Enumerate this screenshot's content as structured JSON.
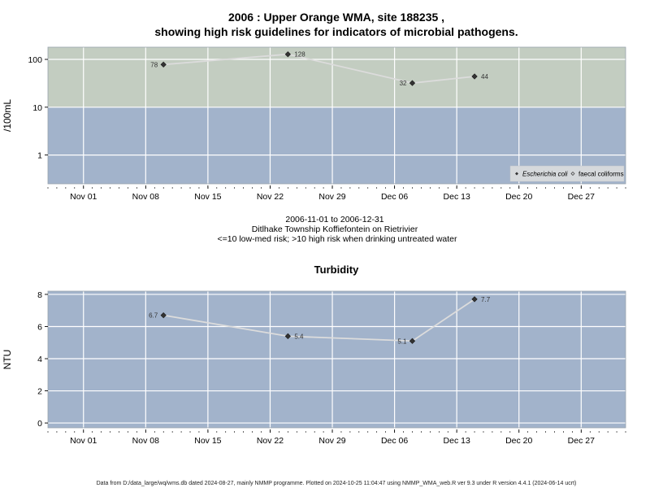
{
  "title_line1": "2006 : Upper Orange WMA, site 188235 ,",
  "title_line2": "showing high risk guidelines for indicators of microbial pathogens.",
  "subtitle_lines": [
    "2006-11-01 to 2006-12-31",
    "Ditlhake Township Koffiefontein on Rietrivier",
    "<=10 low-med risk; >10 high risk when drinking untreated water"
  ],
  "footer": "Data from D:/data_large/wq/wms.db dated 2024-08-27, mainly NMMP programme. Plotted on 2024-10-25 11:04:47 using NMMP_WMA_web.R ver 9.3 under R version 4.4.1 (2024-06-14 ucrt)",
  "colors": {
    "high_risk_band": "#c3cdc1",
    "low_risk_band": "#a2b3cb",
    "line": "#dcdcdc",
    "grid": "#ffffff",
    "point": "#333333"
  },
  "chart_data": [
    {
      "type": "line",
      "title": "",
      "ylabel": "/100mL",
      "yscale": "log",
      "ylim": [
        0.25,
        180
      ],
      "yticks": [
        1,
        10,
        100
      ],
      "ytick_labels": [
        "1",
        "10",
        "100"
      ],
      "threshold": 10,
      "xlim": [
        "2006-10-28",
        "2007-01-01"
      ],
      "xticks": [
        "2006-11-01",
        "2006-11-08",
        "2006-11-15",
        "2006-11-22",
        "2006-11-29",
        "2006-12-06",
        "2006-12-13",
        "2006-12-20",
        "2006-12-27"
      ],
      "xtick_labels": [
        "Nov 01",
        "Nov 08",
        "Nov 15",
        "Nov 22",
        "Nov 29",
        "Dec 06",
        "Dec 13",
        "Dec 20",
        "Dec 27"
      ],
      "grid": true,
      "legend_position": "bottom-right",
      "legend": [
        "Escherichia coli",
        "faecal coliforms"
      ],
      "series": [
        {
          "name": "Escherichia coli",
          "marker": "diamond",
          "x": [
            "2006-11-10",
            "2006-11-24",
            "2006-12-08",
            "2006-12-15"
          ],
          "values": [
            78,
            128,
            32,
            44
          ],
          "labels": [
            "78",
            "128",
            "32",
            "44"
          ]
        }
      ]
    },
    {
      "type": "line",
      "title": "Turbidity",
      "ylabel": "NTU",
      "yscale": "linear",
      "ylim": [
        -0.3,
        8.2
      ],
      "yticks": [
        0,
        2,
        4,
        6,
        8
      ],
      "ytick_labels": [
        "0",
        "2",
        "4",
        "6",
        "8"
      ],
      "xlim": [
        "2006-10-28",
        "2007-01-01"
      ],
      "xticks": [
        "2006-11-01",
        "2006-11-08",
        "2006-11-15",
        "2006-11-22",
        "2006-11-29",
        "2006-12-06",
        "2006-12-13",
        "2006-12-20",
        "2006-12-27"
      ],
      "xtick_labels": [
        "Nov 01",
        "Nov 08",
        "Nov 15",
        "Nov 22",
        "Nov 29",
        "Dec 06",
        "Dec 13",
        "Dec 20",
        "Dec 27"
      ],
      "grid": true,
      "series": [
        {
          "marker": "diamond",
          "x": [
            "2006-11-10",
            "2006-11-24",
            "2006-12-08",
            "2006-12-15"
          ],
          "values": [
            6.7,
            5.4,
            5.1,
            7.7
          ],
          "labels": [
            "6.7",
            "5.4",
            "5.1",
            "7.7"
          ]
        }
      ]
    }
  ]
}
